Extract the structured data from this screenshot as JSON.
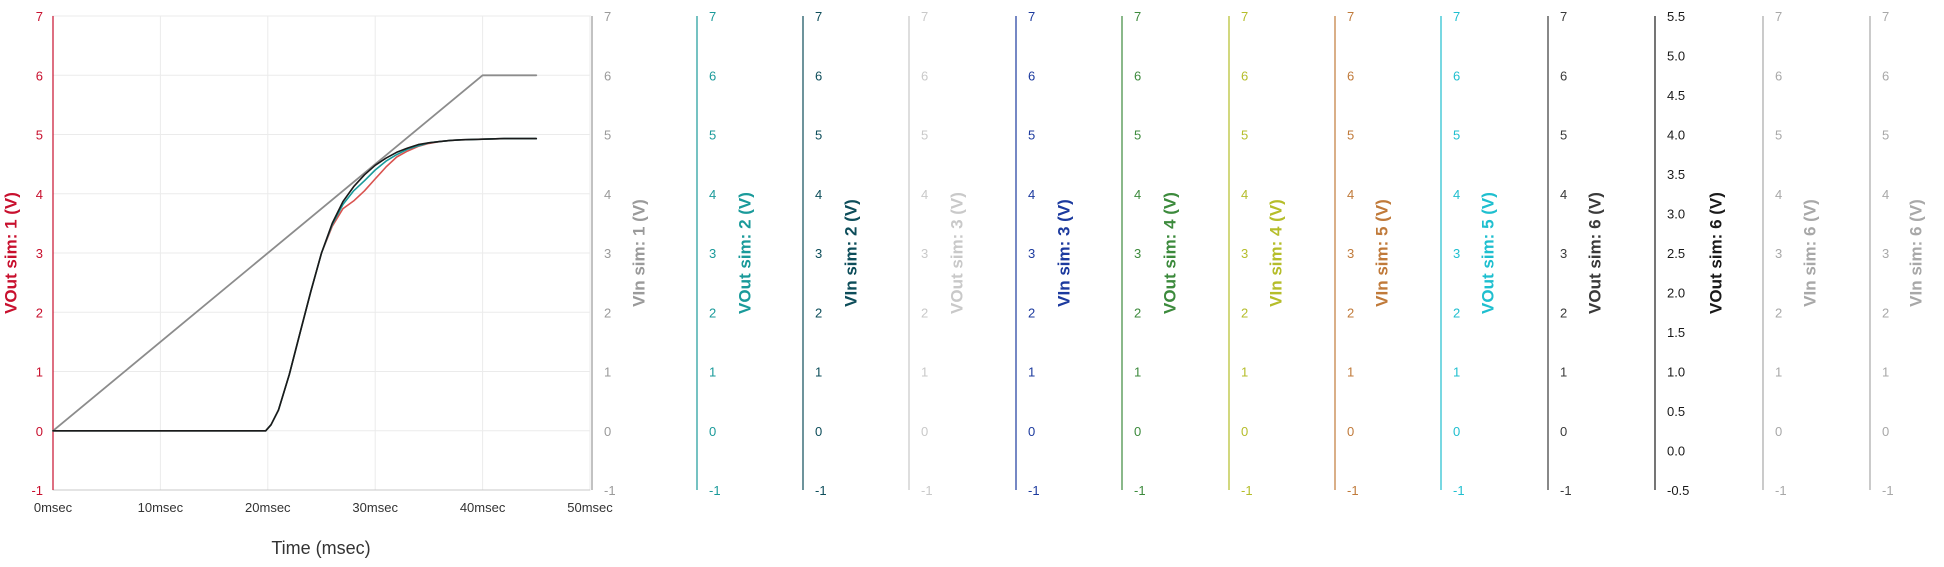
{
  "chart_data": {
    "type": "line",
    "xlabel": "Time (msec)",
    "x_ticks": [
      "0msec",
      "10msec",
      "20msec",
      "30msec",
      "40msec",
      "50msec"
    ],
    "xlim": [
      0,
      50
    ],
    "ylim": [
      -1,
      7
    ],
    "y_ticks": [
      "-1",
      "0",
      "1",
      "2",
      "3",
      "4",
      "5",
      "6",
      "7"
    ],
    "grid": true,
    "axes": [
      {
        "label": "VOut sim: 1 (V)",
        "color": "#c8102e",
        "ticks": [
          "-1",
          "0",
          "1",
          "2",
          "3",
          "4",
          "5",
          "6",
          "7"
        ],
        "position": "left"
      },
      {
        "label": "VIn sim: 1 (V)",
        "color": "#9a9a9a",
        "ticks": [
          "-1",
          "0",
          "1",
          "2",
          "3",
          "4",
          "5",
          "6",
          "7"
        ]
      },
      {
        "label": "VOut sim: 2 (V)",
        "color": "#1a9a9a",
        "ticks": [
          "-1",
          "0",
          "1",
          "2",
          "3",
          "4",
          "5",
          "6",
          "7"
        ]
      },
      {
        "label": "VIn sim: 2 (V)",
        "color": "#0d4d5a",
        "ticks": [
          "-1",
          "0",
          "1",
          "2",
          "3",
          "4",
          "5",
          "6",
          "7"
        ]
      },
      {
        "label": "VOut sim: 3 (V)",
        "color": "#c9c9c9",
        "ticks": [
          "-1",
          "0",
          "1",
          "2",
          "3",
          "4",
          "5",
          "6",
          "7"
        ]
      },
      {
        "label": "VIn sim: 3 (V)",
        "color": "#1c3a9e",
        "ticks": [
          "-1",
          "0",
          "1",
          "2",
          "3",
          "4",
          "5",
          "6",
          "7"
        ]
      },
      {
        "label": "VOut sim: 4 (V)",
        "color": "#3c8a3c",
        "ticks": [
          "-1",
          "0",
          "1",
          "2",
          "3",
          "4",
          "5",
          "6",
          "7"
        ]
      },
      {
        "label": "VIn sim: 4 (V)",
        "color": "#b5bd2a",
        "ticks": [
          "-1",
          "0",
          "1",
          "2",
          "3",
          "4",
          "5",
          "6",
          "7"
        ]
      },
      {
        "label": "VIn sim: 5 (V)",
        "color": "#c07a3a",
        "ticks": [
          "-1",
          "0",
          "1",
          "2",
          "3",
          "4",
          "5",
          "6",
          "7"
        ]
      },
      {
        "label": "VOut sim: 5 (V)",
        "color": "#1fbfcf",
        "ticks": [
          "-1",
          "0",
          "1",
          "2",
          "3",
          "4",
          "5",
          "6",
          "7"
        ]
      },
      {
        "label": "VOut sim: 6 (V)",
        "color": "#3a3a3a",
        "ticks": [
          "-1",
          "0",
          "1",
          "2",
          "3",
          "4",
          "5",
          "6",
          "7"
        ]
      },
      {
        "label": "VOut sim: 6 (V)",
        "color": "#1a1a1a",
        "ticks": [
          "-0.5",
          "0.0",
          "0.5",
          "1.0",
          "1.5",
          "2.0",
          "2.5",
          "3.0",
          "3.5",
          "4.0",
          "4.5",
          "5.0",
          "5.5"
        ]
      },
      {
        "label": "VIn sim: 6 (V)",
        "color": "#a8a8a8",
        "ticks": [
          "-1",
          "0",
          "1",
          "2",
          "3",
          "4",
          "5",
          "6",
          "7"
        ]
      },
      {
        "label": "VIn sim: 6 (V)",
        "color": "#a8a8a8",
        "ticks": [
          "-1",
          "0",
          "1",
          "2",
          "3",
          "4",
          "5",
          "6",
          "7"
        ]
      }
    ],
    "series": [
      {
        "name": "VIn sim: 1 (V)",
        "color": "#8c8c8c",
        "x": [
          0,
          40,
          45
        ],
        "y": [
          0,
          6,
          6
        ]
      },
      {
        "name": "VOut sim: 1 (V)",
        "color": "#d9534f",
        "x": [
          0,
          19.8,
          20.3,
          21,
          22,
          23,
          24,
          25,
          26,
          27,
          28,
          29,
          30,
          31,
          32,
          33,
          34,
          35,
          36,
          37,
          38,
          40,
          42,
          45
        ],
        "y": [
          0,
          0,
          0.1,
          0.35,
          0.95,
          1.65,
          2.35,
          3.0,
          3.45,
          3.75,
          3.88,
          4.05,
          4.25,
          4.45,
          4.62,
          4.72,
          4.8,
          4.85,
          4.88,
          4.9,
          4.91,
          4.92,
          4.93,
          4.93
        ]
      },
      {
        "name": "VOut sim: 2 (V)",
        "color": "#1a9a9a",
        "x": [
          0,
          19.8,
          20.3,
          21,
          22,
          23,
          24,
          25,
          26,
          27,
          28,
          29,
          30,
          31,
          32,
          33,
          34,
          35,
          36,
          37,
          38,
          40,
          42,
          45
        ],
        "y": [
          0,
          0,
          0.1,
          0.35,
          0.95,
          1.65,
          2.35,
          3.0,
          3.48,
          3.82,
          4.05,
          4.22,
          4.4,
          4.55,
          4.66,
          4.75,
          4.81,
          4.86,
          4.88,
          4.9,
          4.91,
          4.92,
          4.93,
          4.93
        ]
      },
      {
        "name": "VOut sim: 6 (V)",
        "color": "#1a1a1a",
        "x": [
          0,
          19.8,
          20.3,
          21,
          22,
          23,
          24,
          25,
          26,
          27,
          28,
          29,
          30,
          31,
          32,
          33,
          34,
          35,
          36,
          37,
          38,
          40,
          42,
          45
        ],
        "y": [
          0,
          0,
          0.1,
          0.35,
          0.95,
          1.65,
          2.35,
          3.0,
          3.5,
          3.87,
          4.12,
          4.32,
          4.48,
          4.6,
          4.7,
          4.77,
          4.83,
          4.86,
          4.88,
          4.9,
          4.91,
          4.92,
          4.93,
          4.93
        ]
      }
    ]
  }
}
